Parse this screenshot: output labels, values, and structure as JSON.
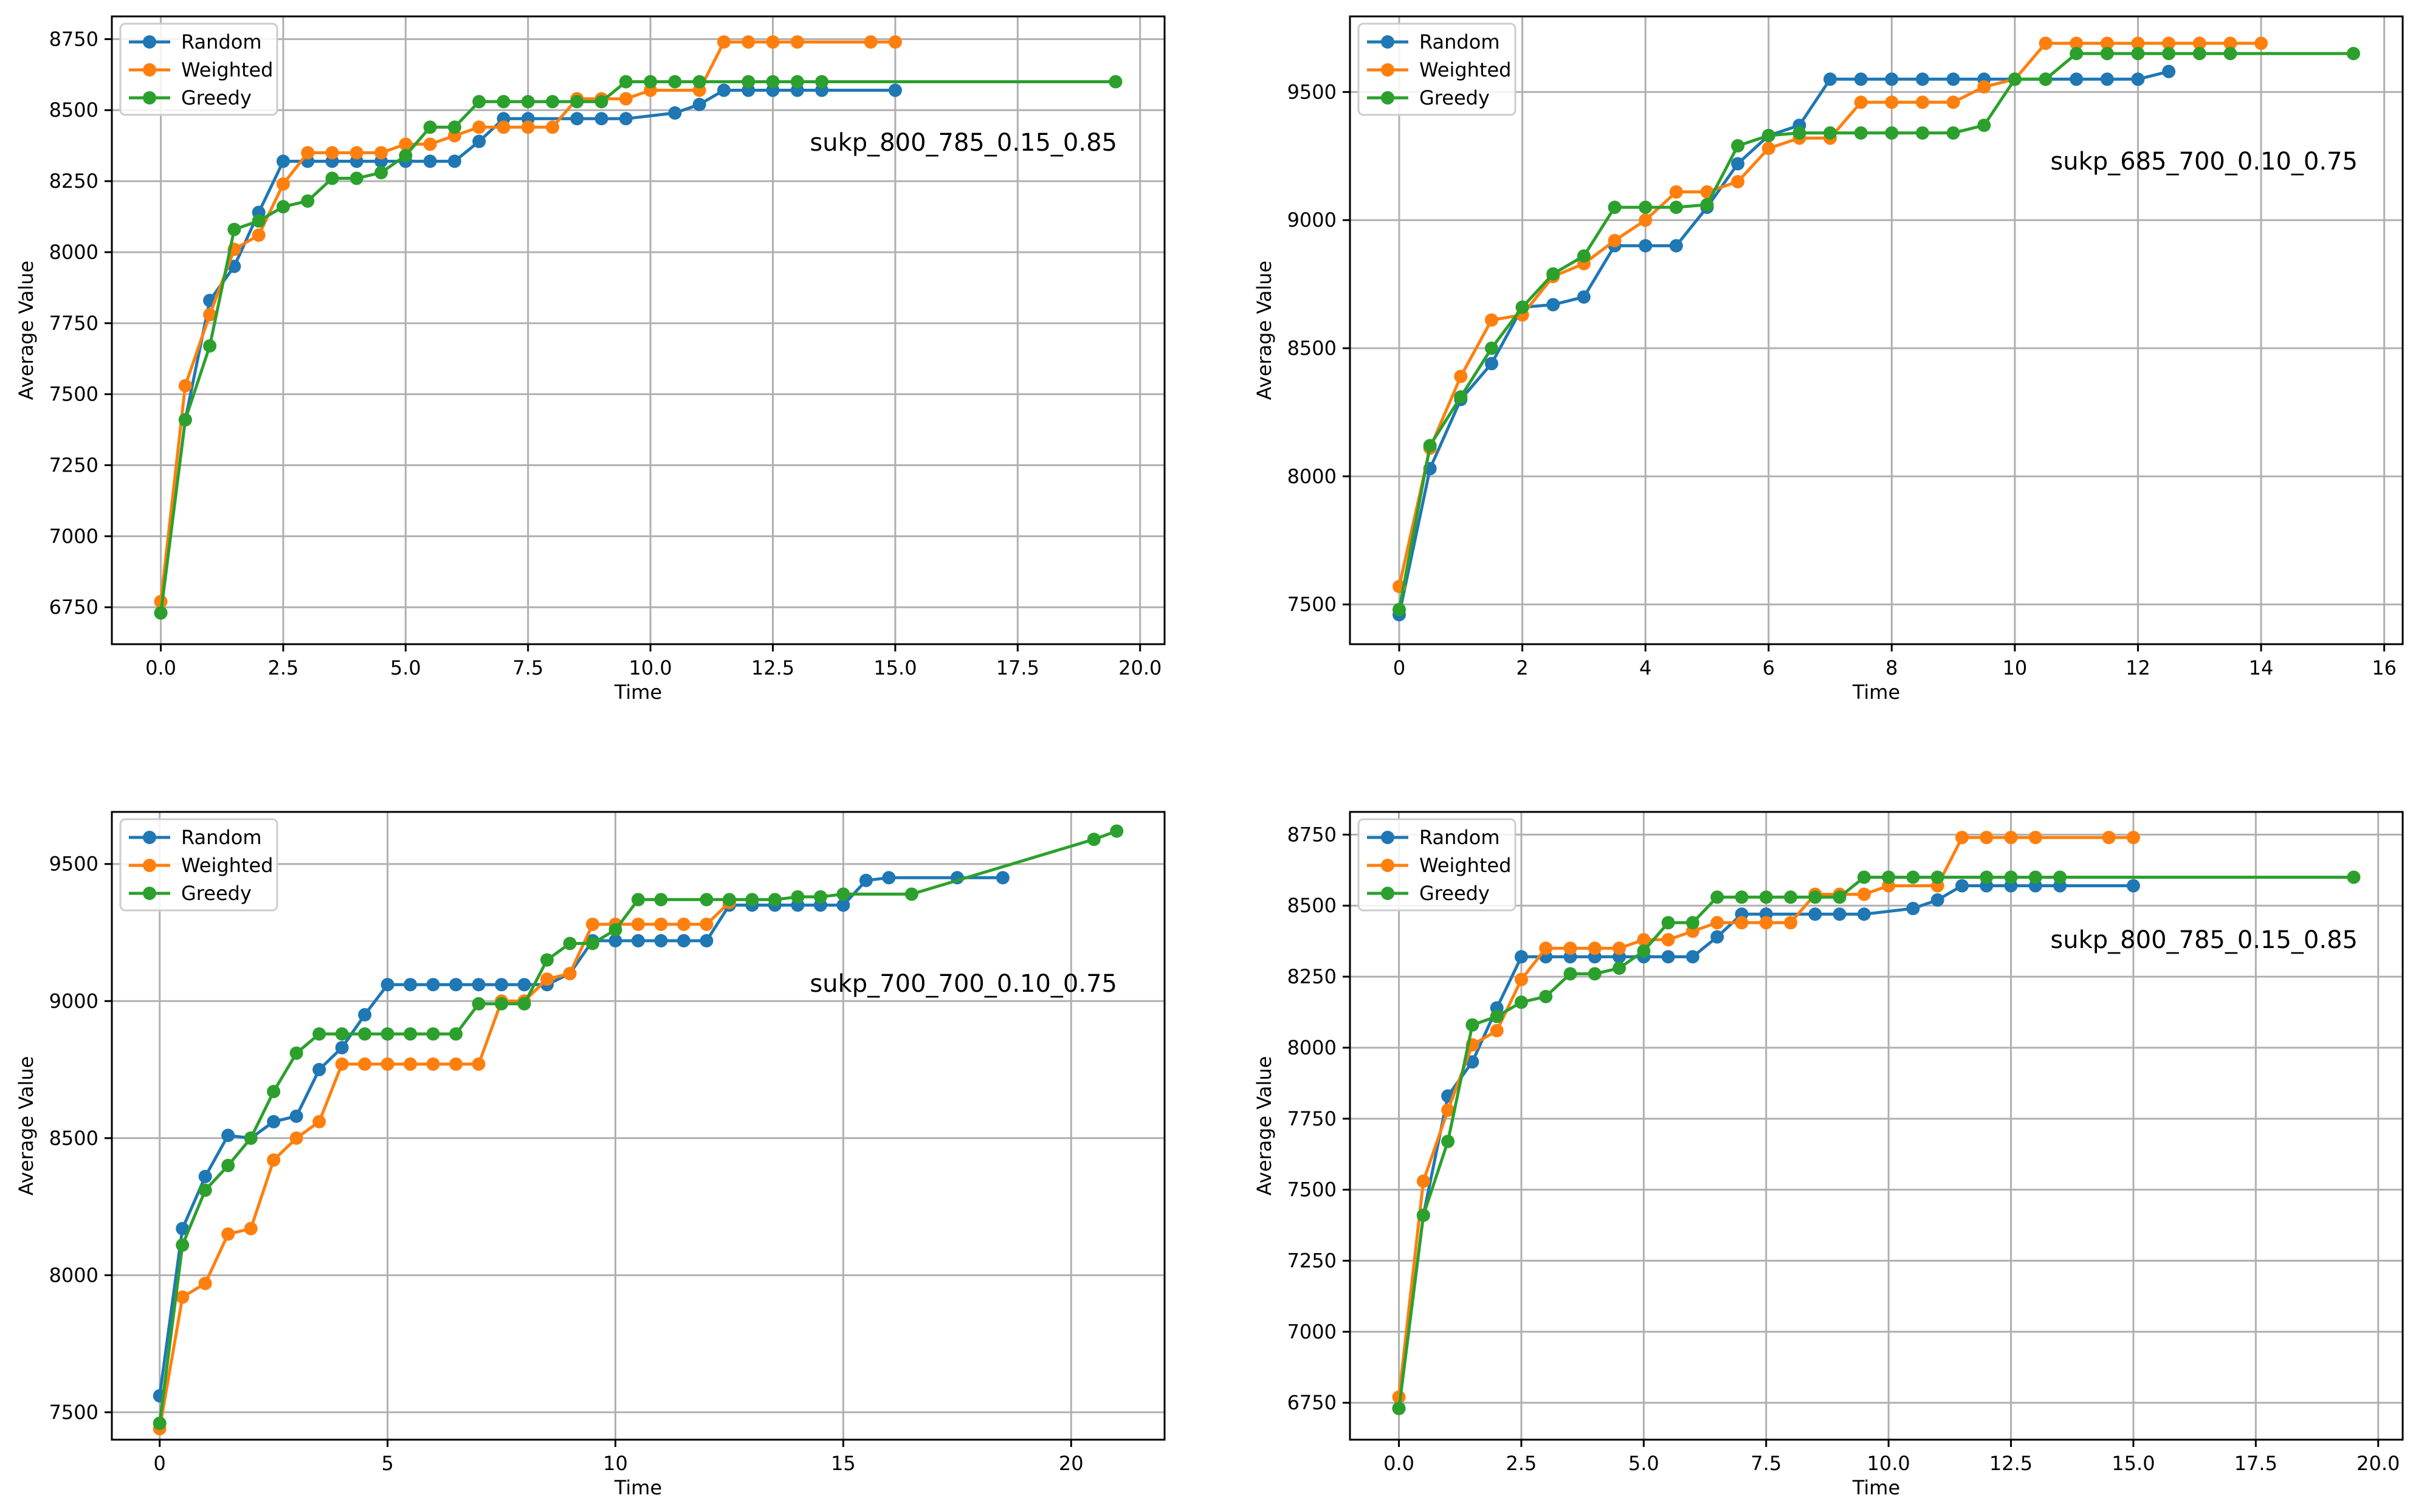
{
  "legend_labels": [
    "Random",
    "Weighted",
    "Greedy"
  ],
  "series_colors": {
    "Random": "#1f77b4",
    "Weighted": "#ff7f0e",
    "Greedy": "#2ca02c"
  },
  "chart_data": [
    {
      "type": "line",
      "annotation": "sukp_800_785_0.15_0.85",
      "xlabel": "Time",
      "ylabel": "Average Value",
      "xlim": [
        -1,
        20.5
      ],
      "ylim": [
        6620,
        8830
      ],
      "xticks": [
        0,
        2.5,
        5,
        7.5,
        10,
        12.5,
        15,
        17.5,
        20
      ],
      "xtick_labels": [
        "0.0",
        "2.5",
        "5.0",
        "7.5",
        "10.0",
        "12.5",
        "15.0",
        "17.5",
        "20.0"
      ],
      "yticks": [
        6750,
        7000,
        7250,
        7500,
        7750,
        8000,
        8250,
        8500,
        8750
      ],
      "ytick_labels": [
        "6750",
        "7000",
        "7250",
        "7500",
        "7750",
        "8000",
        "8250",
        "8500",
        "8750"
      ],
      "grid": true,
      "legend": "top-left",
      "series": [
        {
          "name": "Random",
          "x": [
            0,
            0.5,
            1,
            1.5,
            2,
            2.5,
            3,
            3.5,
            4,
            4.5,
            5,
            5.5,
            6,
            6.5,
            7,
            7.5,
            8.5,
            9,
            9.5,
            10.5,
            11,
            11.5,
            12,
            12.5,
            13,
            13.5,
            15
          ],
          "y": [
            6730,
            7410,
            7830,
            7950,
            8140,
            8320,
            8320,
            8320,
            8320,
            8320,
            8320,
            8320,
            8320,
            8390,
            8470,
            8470,
            8470,
            8470,
            8470,
            8490,
            8520,
            8570,
            8570,
            8570,
            8570,
            8570,
            8570
          ]
        },
        {
          "name": "Weighted",
          "x": [
            0,
            0.5,
            1,
            1.5,
            2,
            2.5,
            3,
            3.5,
            4,
            4.5,
            5,
            5.5,
            6,
            6.5,
            7,
            7.5,
            8,
            8.5,
            9,
            9.5,
            10,
            11,
            11.5,
            12,
            12.5,
            13,
            14.5,
            15
          ],
          "y": [
            6770,
            7530,
            7780,
            8010,
            8060,
            8240,
            8350,
            8350,
            8350,
            8350,
            8380,
            8380,
            8410,
            8440,
            8440,
            8440,
            8440,
            8540,
            8540,
            8540,
            8570,
            8570,
            8740,
            8740,
            8740,
            8740,
            8740,
            8740
          ]
        },
        {
          "name": "Greedy",
          "x": [
            0,
            0.5,
            1,
            1.5,
            2,
            2.5,
            3,
            3.5,
            4,
            4.5,
            5,
            5.5,
            6,
            6.5,
            7,
            7.5,
            8,
            8.5,
            9,
            9.5,
            10,
            10.5,
            11,
            12,
            12.5,
            13,
            13.5,
            19.5
          ],
          "y": [
            6730,
            7410,
            7670,
            8080,
            8110,
            8160,
            8180,
            8260,
            8260,
            8280,
            8340,
            8440,
            8440,
            8530,
            8530,
            8530,
            8530,
            8530,
            8530,
            8600,
            8600,
            8600,
            8600,
            8600,
            8600,
            8600,
            8600,
            8600
          ]
        }
      ]
    },
    {
      "type": "line",
      "annotation": "sukp_685_700_0.10_0.75",
      "xlabel": "Time",
      "ylabel": "Average Value",
      "xlim": [
        -0.8,
        16.3
      ],
      "ylim": [
        7345,
        9795
      ],
      "xticks": [
        0,
        2,
        4,
        6,
        8,
        10,
        12,
        14,
        16
      ],
      "xtick_labels": [
        "0",
        "2",
        "4",
        "6",
        "8",
        "10",
        "12",
        "14",
        "16"
      ],
      "yticks": [
        7500,
        8000,
        8500,
        9000,
        9500
      ],
      "ytick_labels": [
        "7500",
        "8000",
        "8500",
        "9000",
        "9500"
      ],
      "grid": true,
      "legend": "top-left",
      "series": [
        {
          "name": "Random",
          "x": [
            0,
            0.5,
            1,
            1.5,
            2,
            2.5,
            3,
            3.5,
            4,
            4.5,
            5,
            5.5,
            6,
            6.5,
            7,
            7.5,
            8,
            8.5,
            9,
            9.5,
            10,
            10.5,
            11,
            11.5,
            12,
            12.5
          ],
          "y": [
            7460,
            8030,
            8300,
            8440,
            8660,
            8670,
            8700,
            8900,
            8900,
            8900,
            9050,
            9220,
            9330,
            9370,
            9550,
            9550,
            9550,
            9550,
            9550,
            9550,
            9550,
            9550,
            9550,
            9550,
            9550,
            9580
          ]
        },
        {
          "name": "Weighted",
          "x": [
            0,
            0.5,
            1,
            1.5,
            2,
            2.5,
            3,
            3.5,
            4,
            4.5,
            5,
            5.5,
            6,
            6.5,
            7,
            7.5,
            8,
            8.5,
            9,
            9.5,
            10,
            10.5,
            11,
            11.5,
            12,
            12.5,
            13,
            13.5,
            14
          ],
          "y": [
            7570,
            8110,
            8390,
            8610,
            8630,
            8780,
            8830,
            8920,
            9000,
            9110,
            9110,
            9150,
            9280,
            9320,
            9320,
            9460,
            9460,
            9460,
            9460,
            9520,
            9550,
            9690,
            9690,
            9690,
            9690,
            9690,
            9690,
            9690,
            9690
          ]
        },
        {
          "name": "Greedy",
          "x": [
            0,
            0.5,
            1,
            1.5,
            2,
            2.5,
            3,
            3.5,
            4,
            4.5,
            5,
            5.5,
            6,
            6.5,
            7,
            7.5,
            8,
            8.5,
            9,
            9.5,
            10,
            10.5,
            11,
            11.5,
            12,
            12.5,
            13,
            13.5,
            15.5
          ],
          "y": [
            7480,
            8120,
            8310,
            8500,
            8660,
            8790,
            8860,
            9050,
            9050,
            9050,
            9060,
            9290,
            9330,
            9340,
            9340,
            9340,
            9340,
            9340,
            9340,
            9370,
            9550,
            9550,
            9650,
            9650,
            9650,
            9650,
            9650,
            9650,
            9650
          ]
        }
      ]
    },
    {
      "type": "line",
      "annotation": "sukp_700_700_0.10_0.75",
      "xlabel": "Time",
      "ylabel": "Average Value",
      "xlim": [
        -1.05,
        22.05
      ],
      "ylim": [
        7400,
        9690
      ],
      "xticks": [
        0,
        5,
        10,
        15,
        20
      ],
      "xtick_labels": [
        "0",
        "5",
        "10",
        "15",
        "20"
      ],
      "yticks": [
        7500,
        8000,
        8500,
        9000,
        9500
      ],
      "ytick_labels": [
        "7500",
        "8000",
        "8500",
        "9000",
        "9500"
      ],
      "grid": true,
      "legend": "top-left",
      "series": [
        {
          "name": "Random",
          "x": [
            0,
            0.5,
            1,
            1.5,
            2,
            2.5,
            3,
            3.5,
            4,
            4.5,
            5,
            5.5,
            6,
            6.5,
            7,
            7.5,
            8,
            8.5,
            9,
            9.5,
            10,
            10.5,
            11,
            11.5,
            12,
            12.5,
            13,
            13.5,
            14,
            14.5,
            15,
            15.5,
            16,
            17.5,
            18.5
          ],
          "y": [
            7560,
            8170,
            8360,
            8510,
            8500,
            8560,
            8580,
            8750,
            8830,
            8950,
            9060,
            9060,
            9060,
            9060,
            9060,
            9060,
            9060,
            9060,
            9100,
            9220,
            9220,
            9220,
            9220,
            9220,
            9220,
            9350,
            9350,
            9350,
            9350,
            9350,
            9350,
            9440,
            9450,
            9450,
            9450
          ]
        },
        {
          "name": "Weighted",
          "x": [
            0,
            0.5,
            1,
            1.5,
            2,
            2.5,
            3,
            3.5,
            4,
            4.5,
            5,
            5.5,
            6,
            6.5,
            7,
            7.5,
            8,
            8.5,
            9,
            9.5,
            10,
            10.5,
            11,
            11.5,
            12,
            12.5
          ],
          "y": [
            7440,
            7920,
            7970,
            8150,
            8170,
            8420,
            8500,
            8560,
            8770,
            8770,
            8770,
            8770,
            8770,
            8770,
            8770,
            9000,
            9000,
            9080,
            9100,
            9280,
            9280,
            9280,
            9280,
            9280,
            9280,
            9360
          ]
        },
        {
          "name": "Greedy",
          "x": [
            0,
            0.5,
            1,
            1.5,
            2,
            2.5,
            3,
            3.5,
            4,
            4.5,
            5,
            5.5,
            6,
            6.5,
            7,
            7.5,
            8,
            8.5,
            9,
            9.5,
            10,
            10.5,
            11,
            12,
            12.5,
            13,
            13.5,
            14,
            14.5,
            15,
            16.5,
            20.5,
            21
          ],
          "y": [
            7460,
            8110,
            8310,
            8400,
            8500,
            8670,
            8810,
            8880,
            8880,
            8880,
            8880,
            8880,
            8880,
            8880,
            8990,
            8990,
            8990,
            9150,
            9210,
            9210,
            9260,
            9370,
            9370,
            9370,
            9370,
            9370,
            9370,
            9380,
            9380,
            9390,
            9390,
            9590,
            9620
          ]
        }
      ]
    },
    {
      "type": "line",
      "annotation": "sukp_800_785_0.15_0.85",
      "xlabel": "Time",
      "ylabel": "Average Value",
      "xlim": [
        -1,
        20.5
      ],
      "ylim": [
        6620,
        8830
      ],
      "xticks": [
        0,
        2.5,
        5,
        7.5,
        10,
        12.5,
        15,
        17.5,
        20
      ],
      "xtick_labels": [
        "0.0",
        "2.5",
        "5.0",
        "7.5",
        "10.0",
        "12.5",
        "15.0",
        "17.5",
        "20.0"
      ],
      "yticks": [
        6750,
        7000,
        7250,
        7500,
        7750,
        8000,
        8250,
        8500,
        8750
      ],
      "ytick_labels": [
        "6750",
        "7000",
        "7250",
        "7500",
        "7750",
        "8000",
        "8250",
        "8500",
        "8750"
      ],
      "grid": true,
      "legend": "top-left",
      "series": [
        {
          "name": "Random",
          "x": [
            0,
            0.5,
            1,
            1.5,
            2,
            2.5,
            3,
            3.5,
            4,
            4.5,
            5,
            5.5,
            6,
            6.5,
            7,
            7.5,
            8.5,
            9,
            9.5,
            10.5,
            11,
            11.5,
            12,
            12.5,
            13,
            13.5,
            15
          ],
          "y": [
            6730,
            7410,
            7830,
            7950,
            8140,
            8320,
            8320,
            8320,
            8320,
            8320,
            8320,
            8320,
            8320,
            8390,
            8470,
            8470,
            8470,
            8470,
            8470,
            8490,
            8520,
            8570,
            8570,
            8570,
            8570,
            8570,
            8570
          ]
        },
        {
          "name": "Weighted",
          "x": [
            0,
            0.5,
            1,
            1.5,
            2,
            2.5,
            3,
            3.5,
            4,
            4.5,
            5,
            5.5,
            6,
            6.5,
            7,
            7.5,
            8,
            8.5,
            9,
            9.5,
            10,
            11,
            11.5,
            12,
            12.5,
            13,
            14.5,
            15
          ],
          "y": [
            6770,
            7530,
            7780,
            8010,
            8060,
            8240,
            8350,
            8350,
            8350,
            8350,
            8380,
            8380,
            8410,
            8440,
            8440,
            8440,
            8440,
            8540,
            8540,
            8540,
            8570,
            8570,
            8740,
            8740,
            8740,
            8740,
            8740,
            8740
          ]
        },
        {
          "name": "Greedy",
          "x": [
            0,
            0.5,
            1,
            1.5,
            2,
            2.5,
            3,
            3.5,
            4,
            4.5,
            5,
            5.5,
            6,
            6.5,
            7,
            7.5,
            8,
            8.5,
            9,
            9.5,
            10,
            10.5,
            11,
            12,
            12.5,
            13,
            13.5,
            19.5
          ],
          "y": [
            6730,
            7410,
            7670,
            8080,
            8110,
            8160,
            8180,
            8260,
            8260,
            8280,
            8340,
            8440,
            8440,
            8530,
            8530,
            8530,
            8530,
            8530,
            8530,
            8600,
            8600,
            8600,
            8600,
            8600,
            8600,
            8600,
            8600,
            8600
          ]
        }
      ]
    }
  ]
}
